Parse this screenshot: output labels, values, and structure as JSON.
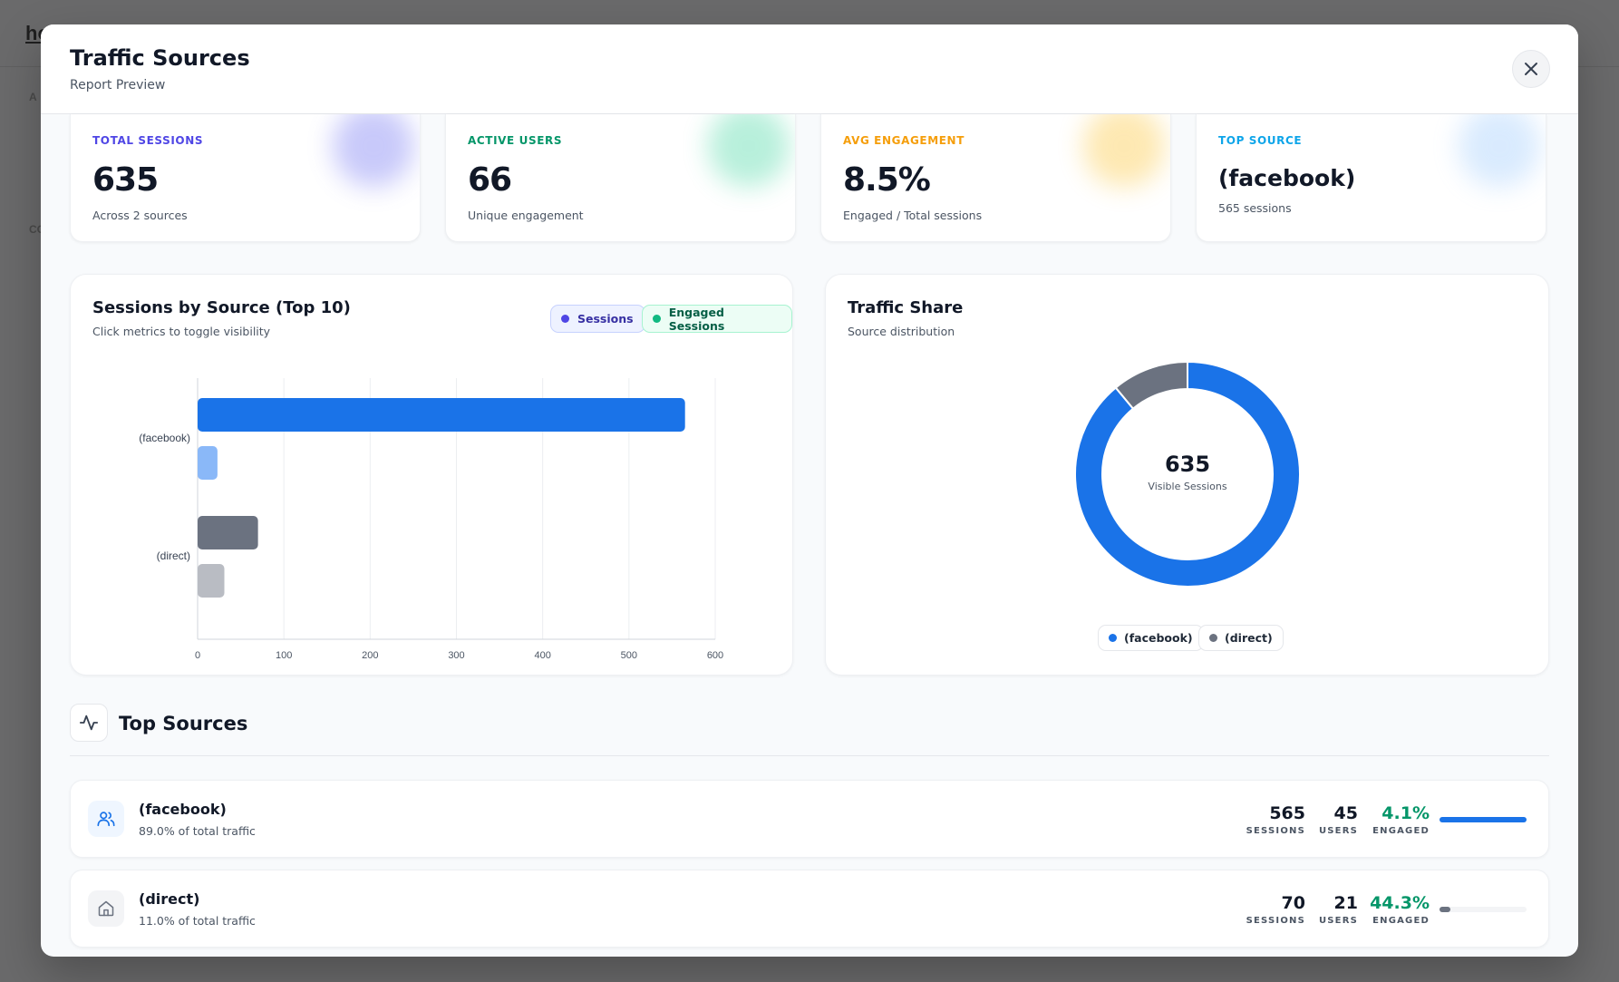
{
  "background": {
    "logo": "ho",
    "side_label_1": "A",
    "side_label_2": "CO"
  },
  "modal": {
    "title": "Traffic Sources",
    "subtitle": "Report Preview",
    "close_icon": "close-icon"
  },
  "kpis": [
    {
      "label": "TOTAL SESSIONS",
      "value": "635",
      "sub": "Across 2 sources",
      "color": "#4f46e5"
    },
    {
      "label": "ACTIVE USERS",
      "value": "66",
      "sub": "Unique engagement",
      "color": "#059669"
    },
    {
      "label": "AVG ENGAGEMENT",
      "value": "8.5%",
      "sub": "Engaged / Total sessions",
      "color": "#f59e0b"
    },
    {
      "label": "TOP SOURCE",
      "value": "(facebook)",
      "sub": "565 sessions",
      "color": "#0ea5e9"
    }
  ],
  "bar_card": {
    "title": "Sessions by Source (Top 10)",
    "subtitle": "Click metrics to toggle visibility",
    "toggles": [
      {
        "label": "Sessions",
        "color": "#4f46e5"
      },
      {
        "label": "Engaged Sessions",
        "color": "#10b981"
      }
    ]
  },
  "donut_card": {
    "title": "Traffic Share",
    "subtitle": "Source distribution",
    "center_value": "635",
    "center_label": "Visible Sessions",
    "legend": [
      {
        "label": "(facebook)",
        "color": "#1a73e8"
      },
      {
        "label": "(direct)",
        "color": "#6b7280"
      }
    ]
  },
  "chart_data": [
    {
      "type": "bar",
      "orientation": "horizontal",
      "categories": [
        "(facebook)",
        "(direct)"
      ],
      "series": [
        {
          "name": "Sessions",
          "values": [
            565,
            70
          ]
        },
        {
          "name": "Engaged Sessions",
          "values": [
            23,
            31
          ]
        }
      ],
      "xlim": [
        0,
        600
      ],
      "xticks": [
        "0",
        "100",
        "200",
        "300",
        "400",
        "500",
        "600"
      ],
      "grid": true
    },
    {
      "type": "pie",
      "categories": [
        "(facebook)",
        "(direct)"
      ],
      "values": [
        565,
        70
      ],
      "donut": true
    }
  ],
  "top_sources": {
    "title": "Top Sources",
    "icon": "activity-icon",
    "rows": [
      {
        "name": "(facebook)",
        "pct": "89.0% of total traffic",
        "sessions": "565",
        "users": "45",
        "engaged": "4.1%",
        "fill": 1.0,
        "color": "#1a73e8",
        "icon": "users-icon"
      },
      {
        "name": "(direct)",
        "pct": "11.0% of total traffic",
        "sessions": "70",
        "users": "21",
        "engaged": "44.3%",
        "fill": 0.124,
        "color": "#6b7280",
        "icon": "home-icon"
      }
    ],
    "labels": {
      "sessions": "SESSIONS",
      "users": "USERS",
      "engaged": "ENGAGED"
    }
  }
}
